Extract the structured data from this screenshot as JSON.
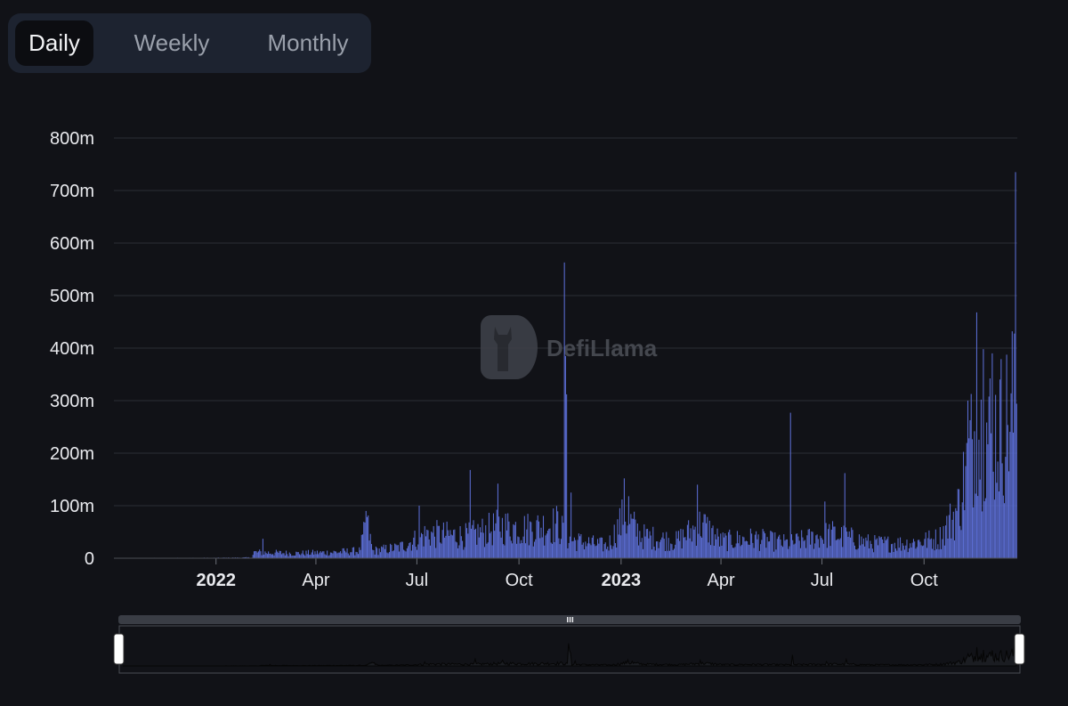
{
  "tabs": {
    "daily": "Daily",
    "weekly": "Weekly",
    "monthly": "Monthly",
    "active": "daily"
  },
  "watermark": "DefiLlama",
  "colors": {
    "background": "#111217",
    "bar": "#5a6cd1",
    "grid": "#2b2e36",
    "tab_bg": "#1d2330",
    "slider": "#3a3d45"
  },
  "chart_data": {
    "type": "bar",
    "y_ticks": [
      "800m",
      "700m",
      "600m",
      "500m",
      "400m",
      "300m",
      "200m",
      "100m",
      "0"
    ],
    "ylim": [
      0,
      800
    ],
    "y_unit": "m",
    "grid": true,
    "x_ticks": [
      {
        "label": "2022",
        "bold": true
      },
      {
        "label": "Apr",
        "bold": false
      },
      {
        "label": "Jul",
        "bold": false
      },
      {
        "label": "Oct",
        "bold": false
      },
      {
        "label": "2023",
        "bold": true
      },
      {
        "label": "Apr",
        "bold": false
      },
      {
        "label": "Jul",
        "bold": false
      },
      {
        "label": "Oct",
        "bold": false
      }
    ],
    "x_tick_dates": [
      "2022-01-01",
      "2022-04-01",
      "2022-07-01",
      "2022-10-01",
      "2023-01-01",
      "2023-04-01",
      "2023-07-01",
      "2023-10-01"
    ],
    "x_range": [
      "2021-10-01",
      "2023-12-24"
    ],
    "series_anchors": [
      [
        "2021-10-01",
        0.5
      ],
      [
        "2021-12-31",
        0.8
      ],
      [
        "2022-02-02",
        1.5
      ],
      [
        "2022-02-04",
        12
      ],
      [
        "2022-03-15",
        10
      ],
      [
        "2022-04-15",
        12
      ],
      [
        "2022-05-10",
        15
      ],
      [
        "2022-05-17",
        70
      ],
      [
        "2022-05-22",
        15
      ],
      [
        "2022-06-15",
        22
      ],
      [
        "2022-07-10",
        50
      ],
      [
        "2022-08-15",
        45
      ],
      [
        "2022-09-15",
        65
      ],
      [
        "2022-10-10",
        60
      ],
      [
        "2022-11-05",
        70
      ],
      [
        "2022-11-15",
        38
      ],
      [
        "2022-12-20",
        25
      ],
      [
        "2023-01-04",
        85
      ],
      [
        "2023-01-20",
        45
      ],
      [
        "2023-02-20",
        35
      ],
      [
        "2023-03-15",
        70
      ],
      [
        "2023-04-01",
        35
      ],
      [
        "2023-05-01",
        40
      ],
      [
        "2023-06-01",
        30
      ],
      [
        "2023-07-10",
        50
      ],
      [
        "2023-08-15",
        30
      ],
      [
        "2023-09-15",
        30
      ],
      [
        "2023-10-15",
        40
      ],
      [
        "2023-11-01",
        100
      ],
      [
        "2023-11-15",
        250
      ],
      [
        "2023-12-05",
        260
      ],
      [
        "2023-12-24",
        300
      ]
    ],
    "spikes": [
      [
        "2022-02-12",
        37
      ],
      [
        "2022-05-16",
        90
      ],
      [
        "2022-07-03",
        100
      ],
      [
        "2022-08-18",
        168
      ],
      [
        "2022-09-12",
        142
      ],
      [
        "2022-11-11",
        563
      ],
      [
        "2022-11-12",
        385
      ],
      [
        "2022-11-13",
        312
      ],
      [
        "2022-11-17",
        125
      ],
      [
        "2023-01-04",
        152
      ],
      [
        "2023-01-08",
        118
      ],
      [
        "2023-03-11",
        140
      ],
      [
        "2023-06-03",
        277
      ],
      [
        "2023-07-04",
        108
      ],
      [
        "2023-07-22",
        162
      ],
      [
        "2023-11-10",
        300
      ],
      [
        "2023-11-18",
        468
      ],
      [
        "2023-11-24",
        398
      ],
      [
        "2023-12-02",
        390
      ],
      [
        "2023-12-20",
        432
      ],
      [
        "2023-12-23",
        735
      ]
    ]
  }
}
